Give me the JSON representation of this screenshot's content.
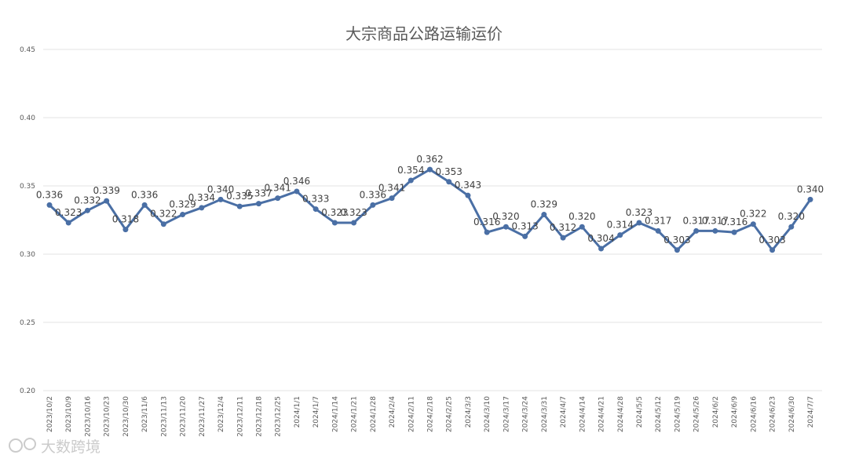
{
  "chart_data": {
    "type": "line",
    "title": "大宗商品公路运输运价",
    "ylim": [
      0.2,
      0.45
    ],
    "yticks": [
      "0.20",
      "0.25",
      "0.30",
      "0.35",
      "0.40",
      "0.45"
    ],
    "grid": true,
    "categories": [
      "2023/10/2",
      "2023/10/9",
      "2023/10/16",
      "2023/10/23",
      "2023/10/30",
      "2023/11/6",
      "2023/11/13",
      "2023/11/20",
      "2023/11/27",
      "2023/12/4",
      "2023/12/11",
      "2023/12/18",
      "2023/12/25",
      "2024/1/1",
      "2024/1/7",
      "2024/1/14",
      "2024/1/21",
      "2024/1/28",
      "2024/2/4",
      "2024/2/11",
      "2024/2/18",
      "2024/2/25",
      "2024/3/3",
      "2024/3/10",
      "2024/3/17",
      "2024/3/24",
      "2024/3/31",
      "2024/4/7",
      "2024/4/14",
      "2024/4/21",
      "2024/4/28",
      "2024/5/5",
      "2024/5/12",
      "2024/5/19",
      "2024/5/26",
      "2024/6/2",
      "2024/6/9",
      "2024/6/16",
      "2024/6/23",
      "2024/6/30",
      "2024/7/7"
    ],
    "series": [
      {
        "color": "#4a6fa5",
        "values": [
          0.336,
          0.323,
          0.332,
          0.339,
          0.318,
          0.336,
          0.322,
          0.329,
          0.334,
          0.34,
          0.335,
          0.337,
          0.341,
          0.346,
          0.333,
          0.323,
          0.323,
          0.336,
          0.341,
          0.354,
          0.362,
          0.353,
          0.343,
          0.316,
          0.32,
          0.313,
          0.329,
          0.312,
          0.32,
          0.304,
          0.314,
          0.323,
          0.317,
          0.303,
          0.317,
          0.317,
          0.316,
          0.322,
          0.303,
          0.32,
          0.34
        ],
        "labels": [
          "0.336",
          "0.323",
          "0.332",
          "0.339",
          "0.318",
          "0.336",
          "0.322",
          "0.329",
          "0.334",
          "0.340",
          "0.335",
          "0.337",
          "0.341",
          "0.346",
          "0.333",
          "0.323",
          "0.323",
          "0.336",
          "0.341",
          "0.354",
          "0.362",
          "0.353",
          "0.343",
          "0.316",
          "0.320",
          "0.313",
          "0.329",
          "0.312",
          "0.320",
          "0.304",
          "0.314",
          "0.323",
          "0.317",
          "0.303",
          "0.317",
          "0.317",
          "0.316",
          "0.322",
          "0.303",
          "0.320",
          "0.340"
        ]
      }
    ]
  },
  "watermark": "大数跨境"
}
